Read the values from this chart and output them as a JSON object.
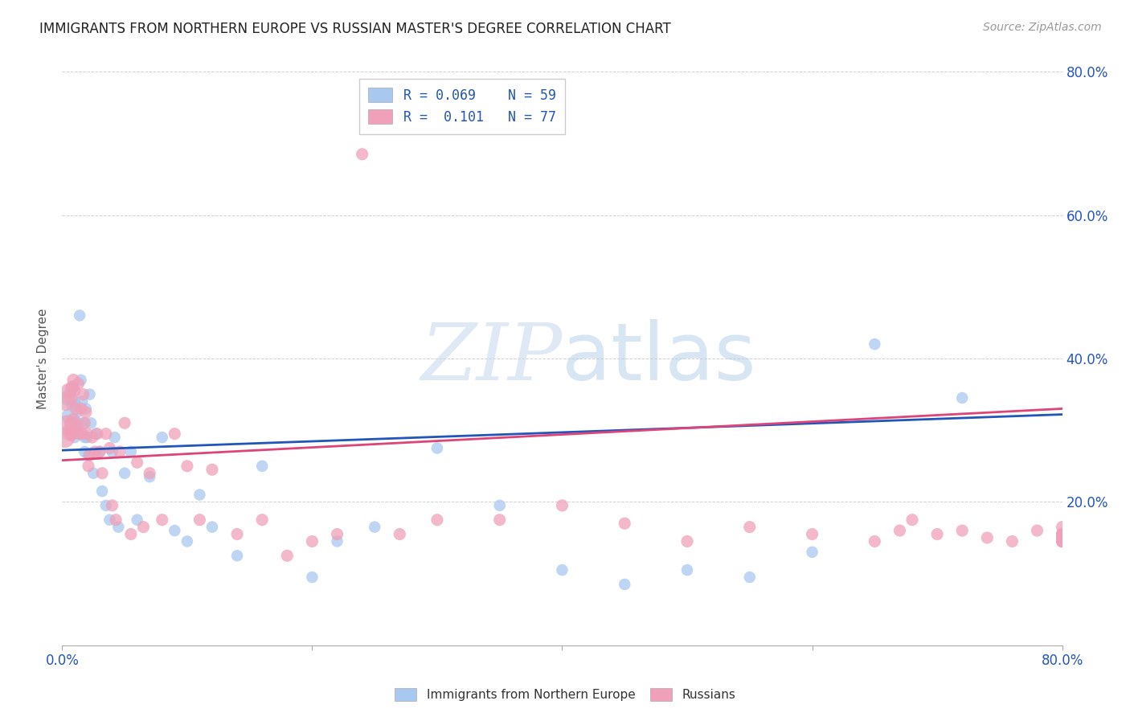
{
  "title": "IMMIGRANTS FROM NORTHERN EUROPE VS RUSSIAN MASTER'S DEGREE CORRELATION CHART",
  "source": "Source: ZipAtlas.com",
  "ylabel": "Master's Degree",
  "ylim": [
    0.0,
    0.8
  ],
  "xlim": [
    0.0,
    0.8
  ],
  "yticks": [
    0.0,
    0.2,
    0.4,
    0.6,
    0.8
  ],
  "xticks": [
    0.0,
    0.2,
    0.4,
    0.6,
    0.8
  ],
  "series1_label": "Immigrants from Northern Europe",
  "series2_label": "Russians",
  "series1_color": "#a8c8f0",
  "series2_color": "#f0a0b8",
  "series1_line_color": "#2255bb",
  "series2_line_color": "#dd4477",
  "watermark_color": "#d0dff5",
  "background_color": "#ffffff",
  "grid_color": "#cccccc",
  "tick_label_color": "#2255bb",
  "title_color": "#222222",
  "source_color": "#999999",
  "ylabel_color": "#555555",
  "series1_R": 0.069,
  "series1_N": 59,
  "series2_R": 0.101,
  "series2_N": 77,
  "trend1_x0": 0.0,
  "trend1_y0": 0.272,
  "trend1_x1": 0.8,
  "trend1_y1": 0.322,
  "trend2_x0": 0.0,
  "trend2_y0": 0.258,
  "trend2_x1": 0.8,
  "trend2_y1": 0.33,
  "series1_x": [
    0.004,
    0.005,
    0.006,
    0.007,
    0.007,
    0.008,
    0.008,
    0.009,
    0.009,
    0.01,
    0.01,
    0.011,
    0.011,
    0.012,
    0.013,
    0.013,
    0.014,
    0.015,
    0.016,
    0.017,
    0.018,
    0.018,
    0.019,
    0.02,
    0.021,
    0.022,
    0.023,
    0.025,
    0.027,
    0.03,
    0.032,
    0.035,
    0.038,
    0.04,
    0.042,
    0.045,
    0.05,
    0.055,
    0.06,
    0.07,
    0.08,
    0.09,
    0.1,
    0.11,
    0.12,
    0.14,
    0.16,
    0.2,
    0.22,
    0.25,
    0.3,
    0.35,
    0.4,
    0.45,
    0.5,
    0.55,
    0.6,
    0.65,
    0.72
  ],
  "series1_y": [
    0.345,
    0.32,
    0.3,
    0.355,
    0.31,
    0.335,
    0.295,
    0.315,
    0.36,
    0.29,
    0.34,
    0.31,
    0.335,
    0.325,
    0.295,
    0.31,
    0.46,
    0.37,
    0.34,
    0.31,
    0.29,
    0.27,
    0.33,
    0.29,
    0.265,
    0.35,
    0.31,
    0.24,
    0.295,
    0.27,
    0.215,
    0.195,
    0.175,
    0.27,
    0.29,
    0.165,
    0.24,
    0.27,
    0.175,
    0.235,
    0.29,
    0.16,
    0.145,
    0.21,
    0.165,
    0.125,
    0.25,
    0.095,
    0.145,
    0.165,
    0.275,
    0.195,
    0.105,
    0.085,
    0.105,
    0.095,
    0.13,
    0.42,
    0.345
  ],
  "series1_sizes": [
    180,
    160,
    150,
    130,
    140,
    120,
    130,
    120,
    120,
    110,
    110,
    110,
    110,
    110,
    110,
    110,
    110,
    110,
    110,
    110,
    110,
    110,
    110,
    110,
    110,
    110,
    110,
    110,
    110,
    110,
    110,
    110,
    110,
    110,
    110,
    110,
    110,
    110,
    110,
    110,
    110,
    110,
    110,
    110,
    110,
    110,
    110,
    110,
    110,
    110,
    110,
    110,
    110,
    110,
    110,
    110,
    110,
    110,
    110
  ],
  "series2_x": [
    0.002,
    0.003,
    0.004,
    0.005,
    0.006,
    0.007,
    0.007,
    0.008,
    0.008,
    0.009,
    0.009,
    0.01,
    0.01,
    0.011,
    0.012,
    0.013,
    0.014,
    0.015,
    0.016,
    0.017,
    0.018,
    0.019,
    0.02,
    0.021,
    0.022,
    0.024,
    0.026,
    0.028,
    0.03,
    0.032,
    0.035,
    0.038,
    0.04,
    0.043,
    0.046,
    0.05,
    0.055,
    0.06,
    0.065,
    0.07,
    0.08,
    0.09,
    0.1,
    0.11,
    0.12,
    0.14,
    0.16,
    0.18,
    0.2,
    0.22,
    0.24,
    0.27,
    0.3,
    0.35,
    0.4,
    0.45,
    0.5,
    0.55,
    0.6,
    0.65,
    0.67,
    0.68,
    0.7,
    0.72,
    0.74,
    0.76,
    0.78,
    0.8,
    0.82,
    0.85,
    0.87,
    0.9,
    0.92,
    0.95,
    0.97,
    1.0,
    1.0
  ],
  "series2_y": [
    0.29,
    0.34,
    0.31,
    0.355,
    0.295,
    0.345,
    0.31,
    0.36,
    0.295,
    0.315,
    0.37,
    0.3,
    0.355,
    0.33,
    0.305,
    0.365,
    0.295,
    0.33,
    0.295,
    0.35,
    0.31,
    0.325,
    0.295,
    0.25,
    0.265,
    0.29,
    0.27,
    0.295,
    0.27,
    0.24,
    0.295,
    0.275,
    0.195,
    0.175,
    0.27,
    0.31,
    0.155,
    0.255,
    0.165,
    0.24,
    0.175,
    0.295,
    0.25,
    0.175,
    0.245,
    0.155,
    0.175,
    0.125,
    0.145,
    0.155,
    0.685,
    0.155,
    0.175,
    0.175,
    0.195,
    0.17,
    0.145,
    0.165,
    0.155,
    0.145,
    0.16,
    0.175,
    0.155,
    0.16,
    0.15,
    0.145,
    0.16,
    0.155,
    0.145,
    0.155,
    0.155,
    0.165,
    0.15,
    0.155,
    0.145,
    0.15,
    0.145
  ],
  "series2_sizes": [
    350,
    280,
    200,
    180,
    170,
    160,
    150,
    140,
    140,
    130,
    130,
    120,
    120,
    120,
    120,
    120,
    120,
    120,
    120,
    120,
    120,
    120,
    120,
    120,
    120,
    120,
    120,
    120,
    120,
    120,
    120,
    120,
    120,
    120,
    120,
    120,
    120,
    120,
    120,
    120,
    120,
    120,
    120,
    120,
    120,
    120,
    120,
    120,
    120,
    120,
    120,
    120,
    120,
    120,
    120,
    120,
    120,
    120,
    120,
    120,
    120,
    120,
    120,
    120,
    120,
    120,
    120,
    120,
    120,
    120,
    120,
    120,
    120,
    120,
    120,
    120,
    120
  ]
}
